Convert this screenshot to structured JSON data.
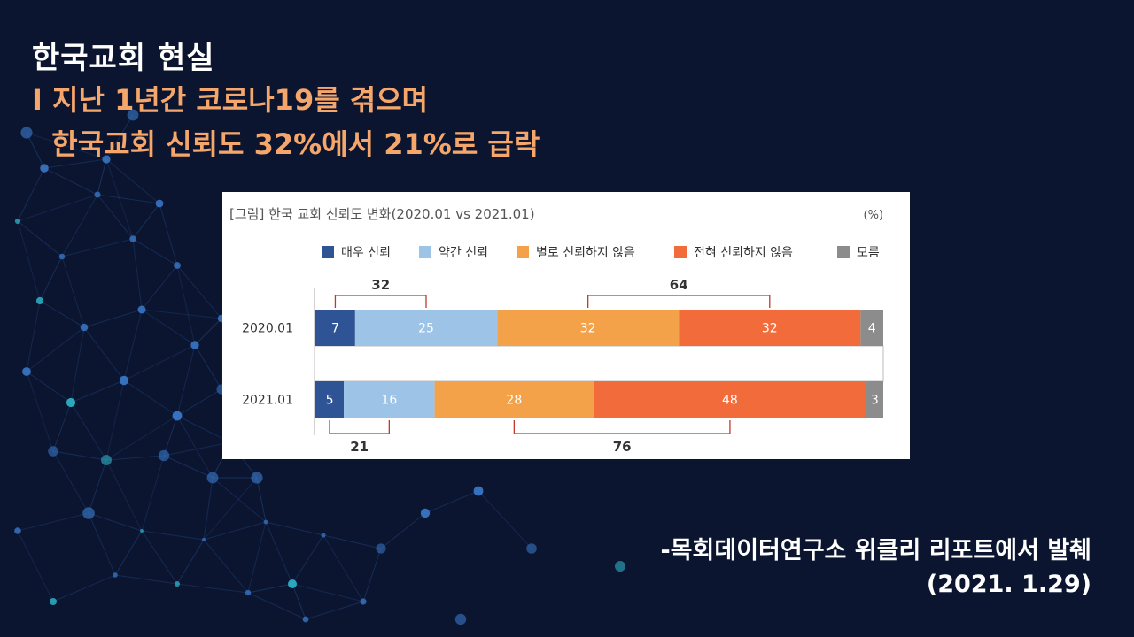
{
  "slide": {
    "title": "한국교회 현실",
    "subtitle_line1": "I 지난 1년간 코로나19를 겪으며",
    "subtitle_line2": "  한국교회 신뢰도 32%에서 21%로 급락",
    "source_line1": "-목회데이터연구소 위클리 리포트에서 발췌",
    "source_line2": "(2021. 1.29)"
  },
  "chart_data": {
    "type": "bar",
    "orientation": "horizontal",
    "stacked": true,
    "title": "[그림] 한국 교회 신뢰도 변화(2020.01 vs 2021.01)",
    "unit": "(%)",
    "legend_position": "top",
    "categories": [
      "2020.01",
      "2021.01"
    ],
    "series": [
      {
        "name": "매우 신뢰",
        "color": "#2f5496",
        "values": [
          7,
          5
        ]
      },
      {
        "name": "약간 신뢰",
        "color": "#9dc3e6",
        "values": [
          25,
          16
        ]
      },
      {
        "name": "별로 신뢰하지 않음",
        "color": "#f4a24a",
        "values": [
          32,
          28
        ]
      },
      {
        "name": "전혀 신뢰하지 않음",
        "color": "#f26b3a",
        "values": [
          32,
          48
        ]
      },
      {
        "name": "모름",
        "color": "#8c8c8c",
        "values": [
          4,
          3
        ]
      }
    ],
    "annotations": [
      {
        "category": "2020.01",
        "label": "32",
        "from_series": 0,
        "to_series": 1,
        "side": "above"
      },
      {
        "category": "2020.01",
        "label": "64",
        "from_series": 2,
        "to_series": 3,
        "side": "above"
      },
      {
        "category": "2021.01",
        "label": "21",
        "from_series": 0,
        "to_series": 1,
        "side": "below"
      },
      {
        "category": "2021.01",
        "label": "76",
        "from_series": 2,
        "to_series": 3,
        "side": "below"
      }
    ],
    "xlim": [
      0,
      100
    ]
  }
}
